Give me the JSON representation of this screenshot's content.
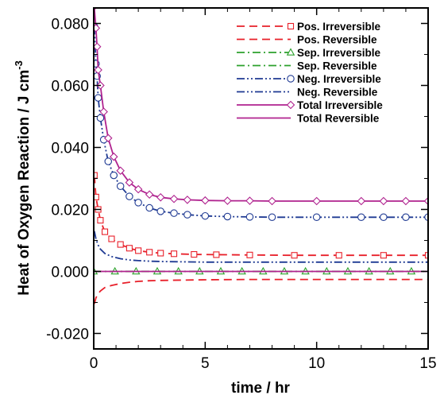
{
  "chart_data": {
    "type": "line",
    "title": "",
    "xlabel": "time / hr",
    "ylabel": "Heat of Oxygen Reaction / J cm",
    "ylabel_superscript": "-3",
    "xlim": [
      0,
      15
    ],
    "ylim": [
      -0.025,
      0.085
    ],
    "x_ticks": [
      {
        "value": 0,
        "label": "0"
      },
      {
        "value": 5,
        "label": "5"
      },
      {
        "value": 10,
        "label": "10"
      },
      {
        "value": 15,
        "label": "15"
      }
    ],
    "y_ticks": [
      {
        "value": -0.02,
        "label": "-0.020"
      },
      {
        "value": 0.0,
        "label": "0.000"
      },
      {
        "value": 0.02,
        "label": "0.020"
      },
      {
        "value": 0.04,
        "label": "0.040"
      },
      {
        "value": 0.06,
        "label": "0.060"
      },
      {
        "value": 0.08,
        "label": "0.080"
      }
    ],
    "grid": false,
    "legend_position": "top-right",
    "series": [
      {
        "name": "Pos. Irreversible",
        "color": "#e8202a",
        "dash": "dashed",
        "marker": "square",
        "x": [
          0.03,
          0.1,
          0.2,
          0.3,
          0.5,
          0.8,
          1.2,
          1.6,
          2.0,
          2.5,
          3.0,
          3.6,
          4.5,
          5.5,
          7,
          9,
          11,
          13,
          15
        ],
        "y": [
          0.031,
          0.024,
          0.02,
          0.0165,
          0.0128,
          0.0105,
          0.0087,
          0.0075,
          0.0067,
          0.0062,
          0.0059,
          0.0057,
          0.0055,
          0.0054,
          0.0053,
          0.0052,
          0.0052,
          0.0052,
          0.0052
        ]
      },
      {
        "name": "Pos. Reversible",
        "color": "#e8202a",
        "dash": "dashed",
        "marker": "none",
        "x": [
          0.03,
          0.1,
          0.2,
          0.3,
          0.5,
          0.8,
          1.2,
          1.6,
          2.0,
          2.5,
          3.0,
          4,
          5,
          7,
          9,
          11,
          13,
          15
        ],
        "y": [
          -0.0105,
          -0.0085,
          -0.0072,
          -0.0063,
          -0.0052,
          -0.0045,
          -0.0039,
          -0.0035,
          -0.0032,
          -0.003,
          -0.0029,
          -0.0028,
          -0.0027,
          -0.0026,
          -0.0026,
          -0.0026,
          -0.0026,
          -0.0026
        ]
      },
      {
        "name": "Sep. Irreversible",
        "color": "#2ca02c",
        "dash": "dashdot",
        "marker": "triangle",
        "x": [
          0,
          15
        ],
        "y": [
          0.0,
          0.0
        ]
      },
      {
        "name": "Sep. Reversible",
        "color": "#2ca02c",
        "dash": "dashdot",
        "marker": "none",
        "x": [
          0,
          15
        ],
        "y": [
          0.0,
          0.0
        ]
      },
      {
        "name": "Neg. Irreversible",
        "color": "#1f3a93",
        "dash": "dashdotdot",
        "marker": "circle",
        "x": [
          0.03,
          0.1,
          0.15,
          0.2,
          0.3,
          0.45,
          0.65,
          0.9,
          1.2,
          1.6,
          2.0,
          2.5,
          3.0,
          3.6,
          4.2,
          5,
          6,
          7,
          8,
          10,
          12,
          13,
          14,
          15
        ],
        "y": [
          0.079,
          0.067,
          0.063,
          0.056,
          0.0495,
          0.0425,
          0.0355,
          0.031,
          0.0275,
          0.0242,
          0.0222,
          0.0205,
          0.0194,
          0.0188,
          0.0183,
          0.0179,
          0.0177,
          0.0176,
          0.0175,
          0.0175,
          0.0175,
          0.0175,
          0.0175,
          0.0175
        ]
      },
      {
        "name": "Neg. Reversible",
        "color": "#1f3a93",
        "dash": "dashdotdot",
        "marker": "none",
        "x": [
          0.03,
          0.1,
          0.2,
          0.3,
          0.5,
          0.8,
          1.2,
          1.6,
          2.0,
          2.5,
          3.0,
          4,
          5,
          7,
          9,
          11,
          13,
          15
        ],
        "y": [
          0.013,
          0.0105,
          0.0085,
          0.0072,
          0.0058,
          0.0048,
          0.0041,
          0.0037,
          0.0035,
          0.0033,
          0.0032,
          0.0031,
          0.003,
          0.003,
          0.003,
          0.003,
          0.003,
          0.003
        ]
      },
      {
        "name": "Total Irreversible",
        "color": "#b0238f",
        "dash": "solid",
        "marker": "diamond",
        "x": [
          0.02,
          0.1,
          0.15,
          0.2,
          0.3,
          0.45,
          0.65,
          0.9,
          1.2,
          1.6,
          2.0,
          2.5,
          3.0,
          3.6,
          4.2,
          5,
          6,
          7,
          8,
          10,
          12,
          13,
          14,
          15
        ],
        "y": [
          0.0855,
          0.0785,
          0.0725,
          0.065,
          0.06,
          0.0515,
          0.043,
          0.037,
          0.0325,
          0.0287,
          0.0265,
          0.0248,
          0.0239,
          0.0234,
          0.0231,
          0.0229,
          0.0228,
          0.0228,
          0.0227,
          0.0227,
          0.0227,
          0.0227,
          0.0227,
          0.0227
        ]
      },
      {
        "name": "Total Reversible",
        "color": "#b0238f",
        "dash": "solid",
        "marker": "none",
        "x": [
          0,
          15
        ],
        "y": [
          0.0,
          0.0
        ]
      }
    ]
  }
}
